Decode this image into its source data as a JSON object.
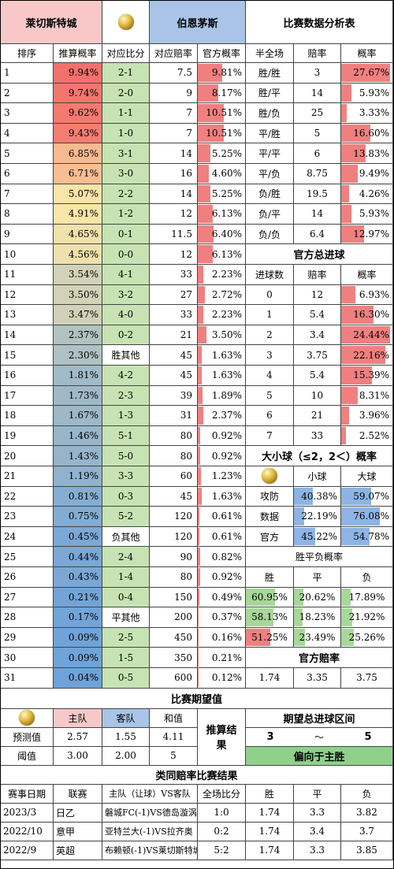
{
  "header": {
    "home_team": "莱切斯特城",
    "away_team": "伯恩茅斯",
    "table_title": "比赛数据分析表"
  },
  "score_table": {
    "columns": [
      "排序",
      "推算概率",
      "对应比分",
      "对应赔率",
      "官方概率"
    ],
    "rows": [
      {
        "rank": "1",
        "prob": "9.94%",
        "score": "2-1",
        "odds": "7.5",
        "official": "9.81%"
      },
      {
        "rank": "2",
        "prob": "9.74%",
        "score": "2-0",
        "odds": "9",
        "official": "8.17%"
      },
      {
        "rank": "3",
        "prob": "9.62%",
        "score": "1-1",
        "odds": "7",
        "official": "10.51%"
      },
      {
        "rank": "4",
        "prob": "9.43%",
        "score": "1-0",
        "odds": "7",
        "official": "10.51%"
      },
      {
        "rank": "5",
        "prob": "6.85%",
        "score": "3-1",
        "odds": "14",
        "official": "5.25%"
      },
      {
        "rank": "6",
        "prob": "6.71%",
        "score": "3-0",
        "odds": "16",
        "official": "4.60%"
      },
      {
        "rank": "7",
        "prob": "5.07%",
        "score": "2-2",
        "odds": "14",
        "official": "5.25%"
      },
      {
        "rank": "8",
        "prob": "4.91%",
        "score": "1-2",
        "odds": "12",
        "official": "6.13%"
      },
      {
        "rank": "9",
        "prob": "4.65%",
        "score": "0-1",
        "odds": "11.5",
        "official": "6.40%"
      },
      {
        "rank": "10",
        "prob": "4.56%",
        "score": "0-0",
        "odds": "12",
        "official": "6.13%"
      },
      {
        "rank": "11",
        "prob": "3.54%",
        "score": "4-1",
        "odds": "33",
        "official": "2.23%"
      },
      {
        "rank": "12",
        "prob": "3.50%",
        "score": "3-2",
        "odds": "27",
        "official": "2.72%"
      },
      {
        "rank": "13",
        "prob": "3.47%",
        "score": "4-0",
        "odds": "33",
        "official": "2.23%"
      },
      {
        "rank": "14",
        "prob": "2.37%",
        "score": "0-2",
        "odds": "21",
        "official": "3.50%"
      },
      {
        "rank": "15",
        "prob": "2.30%",
        "score": "胜其他",
        "odds": "45",
        "official": "1.63%"
      },
      {
        "rank": "16",
        "prob": "1.81%",
        "score": "4-2",
        "odds": "45",
        "official": "1.63%"
      },
      {
        "rank": "17",
        "prob": "1.73%",
        "score": "2-3",
        "odds": "39",
        "official": "1.89%"
      },
      {
        "rank": "18",
        "prob": "1.67%",
        "score": "1-3",
        "odds": "31",
        "official": "2.37%"
      },
      {
        "rank": "19",
        "prob": "1.46%",
        "score": "5-1",
        "odds": "80",
        "official": "0.92%"
      },
      {
        "rank": "20",
        "prob": "1.43%",
        "score": "5-0",
        "odds": "80",
        "official": "0.92%"
      },
      {
        "rank": "21",
        "prob": "1.19%",
        "score": "3-3",
        "odds": "60",
        "official": "1.23%"
      },
      {
        "rank": "22",
        "prob": "0.81%",
        "score": "0-3",
        "odds": "45",
        "official": "1.63%"
      },
      {
        "rank": "23",
        "prob": "0.75%",
        "score": "5-2",
        "odds": "120",
        "official": "0.61%"
      },
      {
        "rank": "24",
        "prob": "0.45%",
        "score": "负其他",
        "odds": "120",
        "official": "0.61%"
      },
      {
        "rank": "25",
        "prob": "0.44%",
        "score": "2-4",
        "odds": "90",
        "official": "0.82%"
      },
      {
        "rank": "26",
        "prob": "0.43%",
        "score": "1-4",
        "odds": "80",
        "official": "0.92%"
      },
      {
        "rank": "27",
        "prob": "0.21%",
        "score": "0-4",
        "odds": "150",
        "official": "0.49%"
      },
      {
        "rank": "28",
        "prob": "0.17%",
        "score": "平其他",
        "odds": "200",
        "official": "0.37%"
      },
      {
        "rank": "29",
        "prob": "0.09%",
        "score": "2-5",
        "odds": "450",
        "official": "0.16%"
      },
      {
        "rank": "30",
        "prob": "0.09%",
        "score": "1-5",
        "odds": "350",
        "official": "0.21%"
      },
      {
        "rank": "31",
        "prob": "0.04%",
        "score": "0-5",
        "odds": "600",
        "official": "0.12%"
      }
    ]
  },
  "halftime": {
    "columns": [
      "半全场",
      "赔率",
      "概率"
    ],
    "rows": [
      {
        "label": "胜/胜",
        "odds": "3",
        "prob": "27.67%"
      },
      {
        "label": "胜/平",
        "odds": "14",
        "prob": "5.93%"
      },
      {
        "label": "胜/负",
        "odds": "25",
        "prob": "3.33%"
      },
      {
        "label": "平/胜",
        "odds": "5",
        "prob": "16.60%"
      },
      {
        "label": "平/平",
        "odds": "6",
        "prob": "13.83%"
      },
      {
        "label": "平/负",
        "odds": "8.75",
        "prob": "9.49%"
      },
      {
        "label": "负/胜",
        "odds": "19.5",
        "prob": "4.26%"
      },
      {
        "label": "负/平",
        "odds": "14",
        "prob": "5.93%"
      },
      {
        "label": "负/负",
        "odds": "6.4",
        "prob": "12.97%"
      }
    ]
  },
  "total_goals": {
    "title": "官方总进球",
    "columns": [
      "进球数",
      "赔率",
      "概率"
    ],
    "rows": [
      {
        "goals": "0",
        "odds": "12",
        "prob": "6.93%"
      },
      {
        "goals": "1",
        "odds": "5.4",
        "prob": "16.30%"
      },
      {
        "goals": "2",
        "odds": "3.4",
        "prob": "24.44%"
      },
      {
        "goals": "3",
        "odds": "3.75",
        "prob": "22.16%"
      },
      {
        "goals": "4",
        "odds": "5.4",
        "prob": "15.39%"
      },
      {
        "goals": "5",
        "odds": "10",
        "prob": "8.31%"
      },
      {
        "goals": "6",
        "odds": "21",
        "prob": "3.96%"
      },
      {
        "goals": "7",
        "odds": "33",
        "prob": "2.52%"
      }
    ]
  },
  "over_under": {
    "title": "大小球（≤2，2＜）概率",
    "columns": [
      "小球",
      "大球"
    ],
    "rows": [
      {
        "label": "攻防",
        "small": "40.38%",
        "big": "59.07%"
      },
      {
        "label": "数据",
        "small": "22.19%",
        "big": "76.08%"
      },
      {
        "label": "官方",
        "small": "45.22%",
        "big": "54.78%"
      }
    ]
  },
  "wdl": {
    "title": "胜平负概率",
    "columns": [
      "胜",
      "平",
      "负"
    ],
    "rows": [
      {
        "win": "60.95%",
        "draw": "20.62%",
        "lose": "17.89%"
      },
      {
        "win": "58.13%",
        "draw": "18.23%",
        "lose": "21.92%"
      },
      {
        "win": "51.25%",
        "draw": "23.49%",
        "lose": "25.26%"
      }
    ],
    "odds_title": "官方赔率",
    "odds": {
      "win": "1.74",
      "draw": "3.35",
      "lose": "3.75"
    }
  },
  "expectation": {
    "title": "比赛期望值",
    "columns": [
      "主队",
      "客队",
      "和值"
    ],
    "rows": [
      {
        "label": "预测值",
        "home": "2.57",
        "away": "1.55",
        "sum": "4.11"
      },
      {
        "label": "阈值",
        "home": "3.00",
        "away": "2.00",
        "sum": "5"
      }
    ],
    "result_label": "推算结果",
    "range_title": "期望总进球区间",
    "range_from": "3",
    "range_sep": "～",
    "range_to": "5",
    "bias": "偏向于主胜"
  },
  "similar": {
    "title": "类同赔率比赛结果",
    "columns": [
      "赛事日期",
      "联赛",
      "主队（让球）VS客队",
      "全场比分",
      "胜",
      "平",
      "负"
    ],
    "rows": [
      {
        "date": "2023/3",
        "league": "日乙",
        "match": "磐城FC(-1)VS德岛漩涡",
        "score": "1:0",
        "w": "1.74",
        "d": "3.3",
        "l": "3.82"
      },
      {
        "date": "2022/10",
        "league": "意甲",
        "match": "亚特兰大(-1)VS拉齐奥",
        "score": "0:2",
        "w": "1.74",
        "d": "3.4",
        "l": "3.7"
      },
      {
        "date": "2022/9",
        "league": "英超",
        "match": "布赖顿(-1)VS莱切斯特城",
        "score": "5:2",
        "w": "1.74",
        "d": "3.3",
        "l": "3.85"
      }
    ]
  },
  "colors": {
    "home_header": "#f8c8c8",
    "away_header": "#a9c4e6",
    "prob_high": "#f3716c",
    "prob_low": "#6fa2d8",
    "score_green": "#c7e3b3",
    "bar_red": "#f08080",
    "bar_blue": "#8db4e2",
    "bar_green": "#a8d79a",
    "bias_green": "#8fd18a"
  }
}
